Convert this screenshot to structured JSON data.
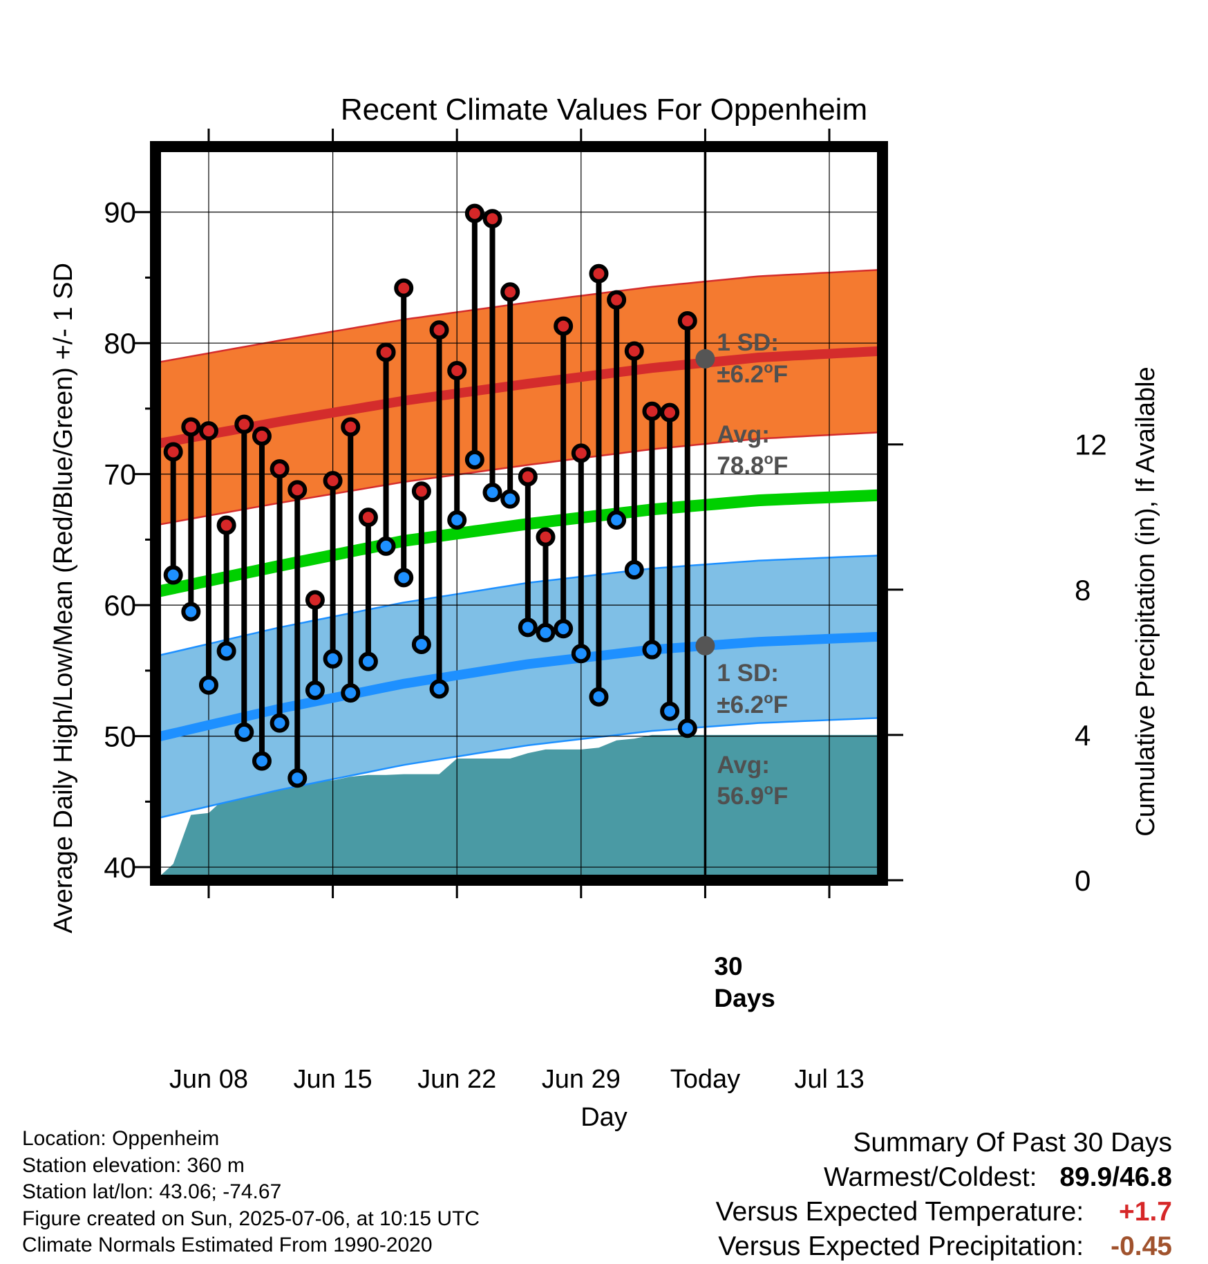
{
  "colors": {
    "high_point": "#d62728",
    "low_point": "#1e90ff",
    "avg_high_band": "#f47a30",
    "avg_high_line": "#d42c2c",
    "avg_low_band": "#7fbfe6",
    "avg_low_line": "#1e90ff",
    "mean_line": "#00d000",
    "precip_fill": "#4a9aa4",
    "annotation_text": "#505050",
    "warm_text": "#d62728",
    "precip_text": "#a0522d"
  },
  "chart_data": {
    "type": "line",
    "title": "Recent Climate Values For Oppenheim",
    "xlabel": "Day",
    "ylabel": "Average Daily High/Low/Mean (Red/Blue/Green) +/- 1 SD",
    "y2label": "Cumulative Precipitation (in), If Available",
    "x_tick_labels": [
      "Jun 08",
      "Jun 15",
      "Jun 22",
      "Jun 29",
      "Today",
      "Jul 13"
    ],
    "x_tick_dates": [
      "2025-06-08",
      "2025-06-15",
      "2025-06-22",
      "2025-06-29",
      "2025-07-06",
      "2025-07-13"
    ],
    "x_range": [
      "2025-06-05",
      "2025-07-16"
    ],
    "ylim": [
      39,
      95
    ],
    "y_ticks": [
      40,
      50,
      60,
      70,
      80,
      90
    ],
    "y2lim": [
      0,
      20.2
    ],
    "y2_ticks": [
      0,
      4,
      8,
      12
    ],
    "grid": true,
    "today": "2025-07-06",
    "today_label": "30\nDays",
    "daily": {
      "dates": [
        "2025-06-06",
        "2025-06-07",
        "2025-06-08",
        "2025-06-09",
        "2025-06-10",
        "2025-06-11",
        "2025-06-12",
        "2025-06-13",
        "2025-06-14",
        "2025-06-15",
        "2025-06-16",
        "2025-06-17",
        "2025-06-18",
        "2025-06-19",
        "2025-06-20",
        "2025-06-21",
        "2025-06-22",
        "2025-06-23",
        "2025-06-24",
        "2025-06-25",
        "2025-06-26",
        "2025-06-27",
        "2025-06-28",
        "2025-06-29",
        "2025-06-30",
        "2025-07-01",
        "2025-07-02",
        "2025-07-03",
        "2025-07-04",
        "2025-07-05"
      ],
      "high": [
        71.7,
        73.6,
        73.3,
        66.1,
        73.8,
        72.9,
        70.4,
        68.8,
        60.4,
        69.5,
        73.6,
        66.7,
        79.3,
        84.2,
        68.7,
        81.0,
        77.9,
        89.9,
        89.5,
        83.9,
        69.8,
        65.2,
        81.3,
        71.6,
        85.3,
        83.3,
        79.4,
        74.8,
        74.7,
        81.7
      ],
      "low": [
        62.3,
        59.5,
        53.9,
        56.5,
        50.3,
        48.1,
        51.0,
        46.8,
        53.5,
        55.9,
        53.3,
        55.7,
        64.5,
        62.1,
        57.0,
        53.6,
        66.5,
        71.1,
        68.6,
        68.1,
        58.3,
        57.9,
        58.2,
        56.3,
        53.0,
        66.5,
        62.7,
        56.6,
        51.9,
        50.6
      ]
    },
    "normals": {
      "dates": [
        "2025-06-05",
        "2025-06-12",
        "2025-06-19",
        "2025-06-26",
        "2025-07-03",
        "2025-07-09",
        "2025-07-16"
      ],
      "avg_high": [
        72.3,
        74.0,
        75.6,
        76.9,
        78.1,
        78.9,
        79.4
      ],
      "avg_low": [
        49.9,
        52.1,
        54.0,
        55.5,
        56.6,
        57.2,
        57.6
      ],
      "mean": [
        61.0,
        63.0,
        64.9,
        66.2,
        67.3,
        68.0,
        68.4
      ],
      "sd": 6.2
    },
    "precip": {
      "dates": [
        "2025-06-05",
        "2025-06-06",
        "2025-06-07",
        "2025-06-08",
        "2025-06-09",
        "2025-06-10",
        "2025-06-11",
        "2025-06-12",
        "2025-06-13",
        "2025-06-14",
        "2025-06-15",
        "2025-06-16",
        "2025-06-17",
        "2025-06-18",
        "2025-06-19",
        "2025-06-20",
        "2025-06-21",
        "2025-06-22",
        "2025-06-23",
        "2025-06-24",
        "2025-06-25",
        "2025-06-26",
        "2025-06-27",
        "2025-06-28",
        "2025-06-29",
        "2025-06-30",
        "2025-07-01",
        "2025-07-02",
        "2025-07-03",
        "2025-07-04",
        "2025-07-05",
        "2025-07-06",
        "2025-07-16"
      ],
      "cumulative": [
        0.0,
        0.45,
        1.8,
        1.85,
        2.3,
        2.6,
        2.6,
        2.6,
        2.65,
        2.75,
        2.75,
        2.85,
        2.9,
        2.9,
        2.92,
        2.92,
        2.92,
        3.35,
        3.35,
        3.35,
        3.35,
        3.5,
        3.6,
        3.6,
        3.6,
        3.65,
        3.85,
        3.9,
        4.0,
        4.0,
        4.0,
        4.0,
        4.0
      ]
    },
    "annotations": {
      "high_sd_label": "1 SD:",
      "high_sd_value": "±6.2",
      "high_avg_label": "Avg:",
      "high_avg_value": "78.8",
      "low_sd_label": "1 SD:",
      "low_sd_value": "±6.2",
      "low_avg_label": "Avg:",
      "low_avg_value": "56.9",
      "degree_symbol": "o",
      "unit_letter": "F",
      "today_high_avg": 78.8,
      "today_low_avg": 56.9
    }
  },
  "footer": {
    "location": "Location: Oppenheim",
    "elevation": "Station elevation: 360 m",
    "latlon": "Station lat/lon: 43.06; -74.67",
    "created": "Figure created on Sun, 2025-07-06, at 10:15 UTC",
    "normals": "Climate Normals Estimated From 1990-2020"
  },
  "summary": {
    "heading": "Summary Of Past 30 Days",
    "warmest_coldest_label": "Warmest/Coldest:",
    "warmest_value": "89.9",
    "separator": "/",
    "coldest_value": "46.8",
    "temp_label": "Versus Expected Temperature:",
    "temp_value": "+1.7",
    "precip_label": "Versus Expected Precipitation:",
    "precip_value": "-0.45"
  }
}
